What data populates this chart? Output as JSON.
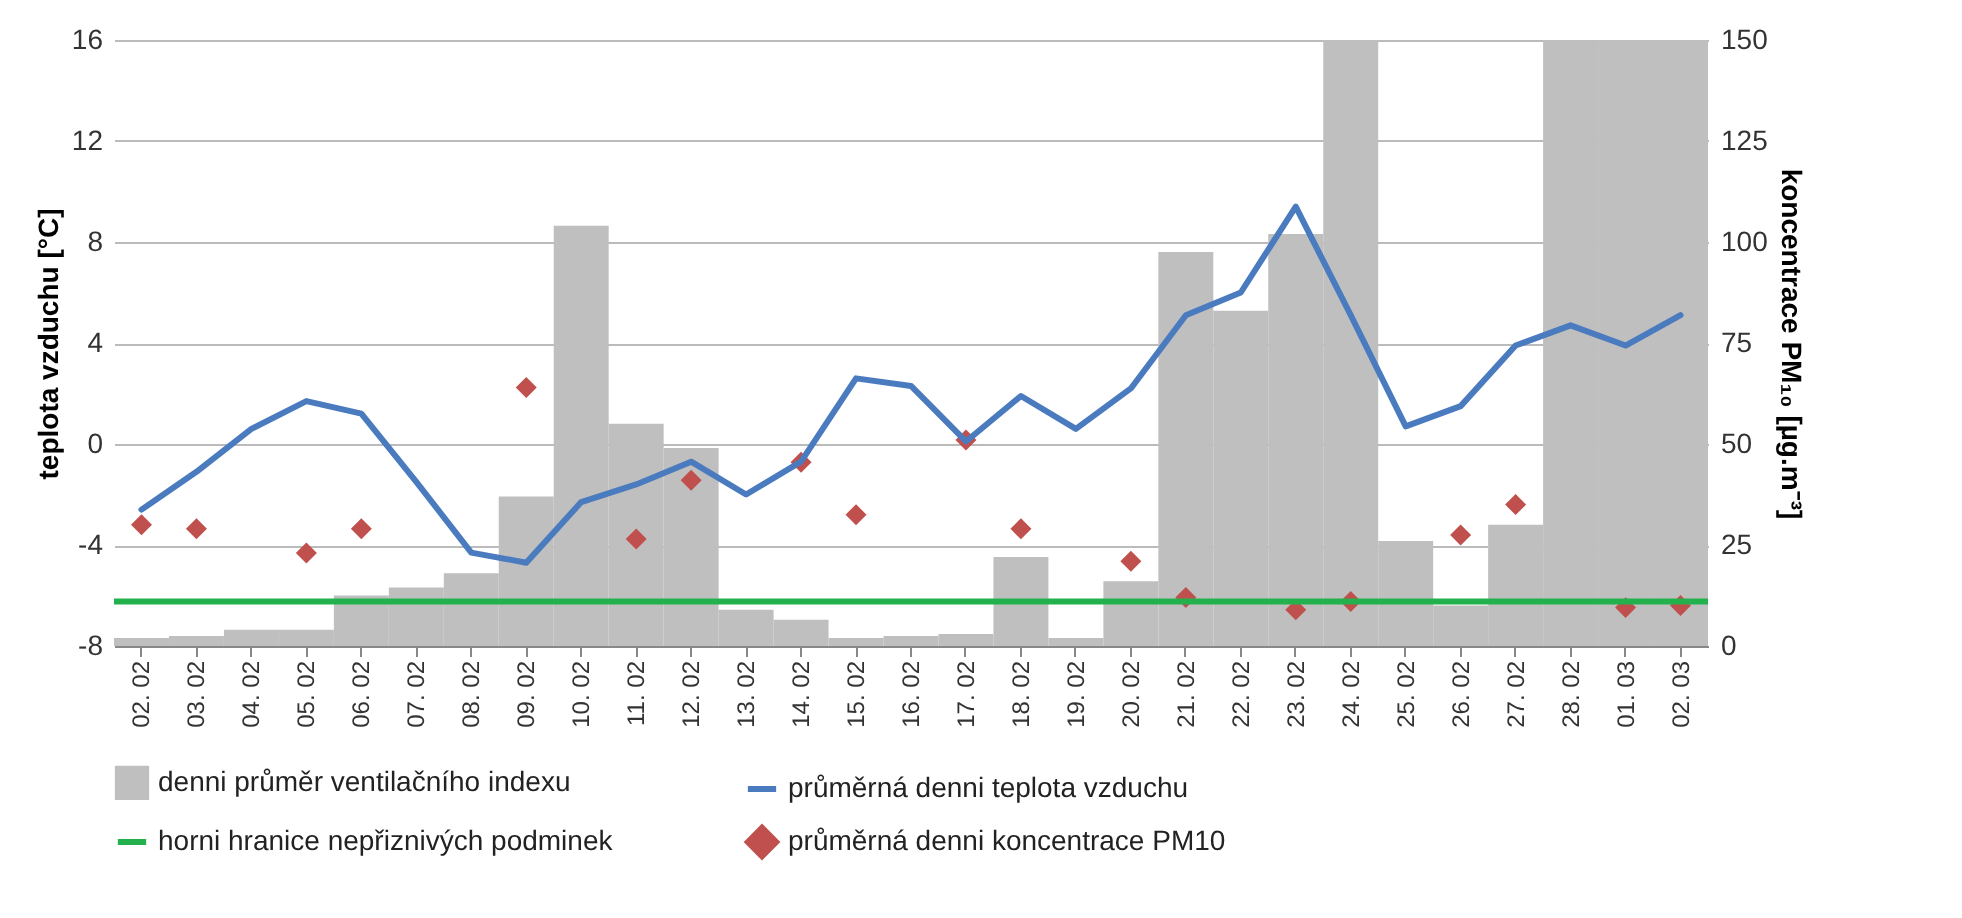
{
  "chart_data": {
    "type": "bar",
    "categories": [
      "02. 02",
      "03. 02",
      "04. 02",
      "05. 02",
      "06. 02",
      "07. 02",
      "08. 02",
      "09. 02",
      "10. 02",
      "11. 02",
      "12. 02",
      "13. 02",
      "14. 02",
      "15. 02",
      "16. 02",
      "17. 02",
      "18. 02",
      "19. 02",
      "20. 02",
      "21. 02",
      "22. 02",
      "23. 02",
      "24. 02",
      "25. 02",
      "26. 02",
      "27. 02",
      "28. 02",
      "01. 03",
      "02. 03"
    ],
    "series": [
      {
        "name": "denni průměr ventilačního indexu",
        "axis": "y2",
        "color": "#bfbfbf",
        "values": [
          2,
          2.5,
          4,
          4,
          12.5,
          14.5,
          18,
          37,
          104,
          55,
          49,
          9,
          6.5,
          2,
          2.5,
          3,
          22,
          2,
          16,
          97.5,
          83,
          102,
          150,
          26,
          10,
          30,
          150,
          150,
          150
        ]
      },
      {
        "name": "průměrná denni teplota vzduchu",
        "type": "line",
        "color": "#4a7bbf",
        "values": [
          -2.6,
          -1.1,
          0.6,
          1.7,
          1.2,
          -1.5,
          -4.3,
          -4.7,
          -2.3,
          -1.6,
          -0.7,
          -2.0,
          -0.7,
          2.6,
          2.3,
          0.1,
          1.9,
          0.6,
          2.2,
          5.1,
          6.0,
          9.4,
          5.1,
          0.7,
          1.5,
          3.9,
          4.7,
          3.9,
          5.1
        ]
      },
      {
        "name": "průměrná denni koncentrace PM10",
        "type": "scatter",
        "axis": "y2",
        "marker": "diamond",
        "color": "#c0504d",
        "values": [
          30,
          29,
          null,
          23,
          29,
          null,
          null,
          64,
          null,
          26.5,
          41,
          null,
          45.5,
          32.5,
          null,
          51,
          29,
          null,
          21,
          12,
          null,
          9,
          11,
          null,
          27.5,
          35,
          null,
          9.5,
          10
        ]
      }
    ],
    "ref_lines": [
      {
        "axis": "y2",
        "value": 11,
        "label": "horni hranice nepřiznivých podminek",
        "color": "#22b14c"
      }
    ],
    "ylabel": "teplota vzduchu [°C]",
    "y2label": "koncentrace PM₁₀ [µg.m⁻³]",
    "ylim": [
      -8,
      16
    ],
    "yticks": [
      -8,
      -4,
      0,
      4,
      8,
      12,
      16
    ],
    "y2lim": [
      0,
      150
    ],
    "y2ticks": [
      0,
      25,
      50,
      75,
      100,
      125,
      150
    ],
    "grid": "y",
    "legend": "bottom"
  }
}
